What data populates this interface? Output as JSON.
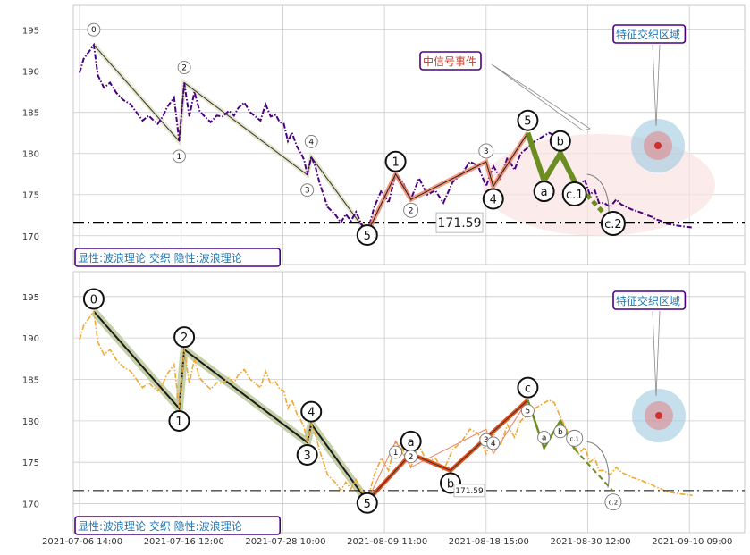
{
  "chart_data": [
    {
      "type": "line",
      "panel": "top",
      "x_ticks": [
        "2021-07-06 14:00",
        "2021-07-16 12:00",
        "2021-07-28 10:00",
        "2021-08-09 11:00",
        "2021-08-18 15:00",
        "2021-08-30 12:00",
        "2021-09-10 09:00"
      ],
      "y_ticks": [
        170,
        175,
        180,
        185,
        190,
        195
      ],
      "ylim": [
        166.5,
        198
      ],
      "grid": true,
      "series": [
        {
          "style": "dash-dot",
          "color": "#4b0082",
          "x": [
            0.0,
            0.4,
            1.0,
            1.4,
            1.8,
            2.4,
            3.0,
            3.6,
            4.3,
            5.0,
            5.6,
            6.2,
            6.8,
            7.3,
            7.7,
            8.2,
            8.6,
            9.3,
            9.8,
            10.3,
            10.8,
            11.3,
            11.8,
            12.3,
            12.9,
            13.5,
            14.1,
            14.7,
            15.2,
            15.6,
            16.2,
            16.8,
            17.3,
            17.8,
            18.3,
            18.8,
            19.3,
            19.7,
            20.1,
            20.5,
            20.9,
            21.4,
            21.8,
            22.1,
            22.4,
            22.8,
            23.2,
            23.6,
            24.0,
            24.4,
            24.8,
            25.2,
            25.7,
            26.2,
            26.7,
            27.2,
            27.7,
            28.3,
            29.0,
            29.7,
            30.4,
            31.1,
            31.8,
            32.6,
            33.4,
            34.2,
            35.0,
            35.8,
            36.7,
            37.6,
            38.4,
            39.2,
            40.0,
            40.7,
            41.4,
            42.1,
            42.8,
            43.4,
            44.1,
            44.8,
            45.5,
            46.2,
            46.7,
            47.3,
            47.9,
            48.5,
            49.1,
            49.7,
            50.2,
            50.7,
            51.1,
            51.6,
            52.2,
            52.8,
            53.3,
            53.8,
            54.3,
            54.8,
            55.3,
            55.8,
            56.3,
            56.7,
            57.2,
            57.6,
            58.0,
            58.5,
            59.0,
            59.6,
            60.3
          ],
          "values": [
            189.8,
            191.5,
            192.5,
            193.2,
            189.5,
            188.0,
            188.6,
            187.4,
            186.5,
            186.0,
            185.0,
            184.0,
            184.6,
            184.0,
            183.6,
            184.5,
            185.6,
            186.8,
            181.5,
            188.6,
            184.5,
            187.5,
            185.2,
            184.5,
            183.8,
            184.6,
            184.5,
            185.2,
            184.6,
            185.5,
            186.2,
            185.0,
            184.5,
            184.0,
            186.0,
            184.5,
            184.7,
            183.8,
            183.6,
            181.5,
            182.5,
            180.8,
            180.0,
            179.2,
            177.4,
            179.6,
            178.4,
            176.5,
            175.0,
            173.5,
            173.0,
            172.5,
            171.6,
            172.6,
            171.8,
            172.9,
            171.5,
            170.3,
            173.5,
            175.5,
            174.0,
            177.5,
            176.5,
            174.4,
            177.0,
            175.0,
            175.5,
            174.0,
            176.5,
            177.5,
            179.0,
            178.5,
            176.0,
            178.5,
            177.0,
            179.5,
            178.0,
            180.0,
            180.7,
            181.5,
            182.0,
            182.5,
            182.2,
            180.5,
            179.0,
            177.5,
            176.0,
            176.8,
            175.0,
            175.5,
            174.0,
            174.0,
            173.5,
            174.4,
            173.8,
            173.5,
            173.2,
            173.0,
            172.8,
            172.5,
            172.3,
            172.0,
            171.8,
            171.5,
            171.4,
            171.3,
            171.2,
            171.1,
            171.0
          ]
        }
      ],
      "reference_line": {
        "value": 171.59,
        "label": "171.59",
        "style": "dash-dot"
      },
      "waves": [
        {
          "label": "0",
          "x": 1.4,
          "y": 193.2
        },
        {
          "label": "1",
          "x": 9.8,
          "y": 181.5
        },
        {
          "label": "2",
          "x": 10.3,
          "y": 188.6
        },
        {
          "label": "3",
          "x": 22.4,
          "y": 177.4
        },
        {
          "label": "4",
          "x": 22.8,
          "y": 179.6
        },
        {
          "label": "5",
          "x": 28.3,
          "y": 170.3
        },
        {
          "label": "1",
          "x": 31.1,
          "y": 177.5
        },
        {
          "label": "2",
          "x": 32.6,
          "y": 174.4
        },
        {
          "label": "3",
          "x": 40.0,
          "y": 179.0
        },
        {
          "label": "4",
          "x": 40.7,
          "y": 176.0
        },
        {
          "label": "5",
          "x": 44.1,
          "y": 182.5
        },
        {
          "label": "a",
          "x": 45.7,
          "y": 176.7
        },
        {
          "label": "b",
          "x": 47.3,
          "y": 180.0
        },
        {
          "label": "c.1",
          "x": 48.7,
          "y": 176.6
        },
        {
          "label": "c.2",
          "x": 52.5,
          "y": 171.5
        }
      ],
      "annotations": [
        "中信号事件",
        "特征交织区域",
        "显性:波浪理论 交织 隐性:波浪理论"
      ]
    },
    {
      "type": "line",
      "panel": "bottom",
      "x_ticks": [
        "2021-07-06 14:00",
        "2021-07-16 12:00",
        "2021-07-28 10:00",
        "2021-08-09 11:00",
        "2021-08-18 15:00",
        "2021-08-30 12:00",
        "2021-09-10 09:00"
      ],
      "y_ticks": [
        170,
        175,
        180,
        185,
        190,
        195
      ],
      "ylim": [
        166.5,
        198
      ],
      "grid": true,
      "series": [
        {
          "style": "dash-dot",
          "color": "#f0a830",
          "x": [
            0.0,
            0.4,
            1.0,
            1.4,
            1.8,
            2.4,
            3.0,
            3.6,
            4.3,
            5.0,
            5.6,
            6.2,
            6.8,
            7.3,
            7.7,
            8.2,
            8.6,
            9.3,
            9.8,
            10.3,
            10.8,
            11.3,
            11.8,
            12.3,
            12.9,
            13.5,
            14.1,
            14.7,
            15.2,
            15.6,
            16.2,
            16.8,
            17.3,
            17.8,
            18.3,
            18.8,
            19.3,
            19.7,
            20.1,
            20.5,
            20.9,
            21.4,
            21.8,
            22.1,
            22.4,
            22.8,
            23.2,
            23.6,
            24.0,
            24.4,
            24.8,
            25.2,
            25.7,
            26.2,
            26.7,
            27.2,
            27.7,
            28.3,
            29.0,
            29.7,
            30.4,
            31.1,
            31.8,
            32.6,
            33.4,
            34.2,
            35.0,
            35.8,
            36.7,
            37.6,
            38.4,
            39.2,
            40.0,
            40.7,
            41.4,
            42.1,
            42.8,
            43.4,
            44.1,
            44.8,
            45.5,
            46.2,
            46.7,
            47.3,
            47.9,
            48.5,
            49.1,
            49.7,
            50.2,
            50.7,
            51.1,
            51.6,
            52.2,
            52.8,
            53.3,
            53.8,
            54.3,
            54.8,
            55.3,
            55.8,
            56.3,
            56.7,
            57.2,
            57.6,
            58.0,
            58.5,
            59.0,
            59.6,
            60.3
          ],
          "values": [
            189.8,
            191.5,
            192.5,
            193.2,
            189.5,
            188.0,
            188.6,
            187.4,
            186.5,
            186.0,
            185.0,
            184.0,
            184.6,
            184.0,
            183.6,
            184.5,
            185.6,
            186.8,
            181.5,
            188.6,
            184.5,
            187.5,
            185.2,
            184.5,
            183.8,
            184.6,
            184.5,
            185.2,
            184.6,
            185.5,
            186.2,
            185.0,
            184.5,
            184.0,
            186.0,
            184.5,
            184.7,
            183.8,
            183.6,
            181.5,
            182.5,
            180.8,
            180.0,
            179.2,
            177.4,
            179.6,
            178.4,
            176.5,
            175.0,
            173.5,
            173.0,
            172.5,
            171.6,
            172.6,
            171.8,
            172.9,
            171.5,
            170.3,
            173.5,
            175.5,
            174.0,
            177.5,
            176.5,
            174.4,
            177.0,
            175.0,
            175.5,
            174.0,
            176.5,
            177.5,
            179.0,
            178.5,
            176.0,
            178.5,
            177.0,
            179.5,
            178.0,
            180.0,
            180.7,
            181.5,
            182.0,
            182.5,
            182.2,
            180.5,
            179.0,
            177.5,
            176.0,
            176.8,
            175.0,
            175.5,
            174.0,
            174.0,
            173.5,
            174.4,
            173.8,
            173.5,
            173.2,
            173.0,
            172.8,
            172.5,
            172.3,
            172.0,
            171.8,
            171.5,
            171.4,
            171.3,
            171.2,
            171.1,
            171.0
          ]
        }
      ],
      "reference_line": {
        "value": 171.59,
        "label": "171.59",
        "style": "dash-dot"
      },
      "waves": [
        {
          "label": "0",
          "x": 1.4,
          "y": 193.2
        },
        {
          "label": "1",
          "x": 9.8,
          "y": 181.5
        },
        {
          "label": "2",
          "x": 10.3,
          "y": 188.6
        },
        {
          "label": "3",
          "x": 22.4,
          "y": 177.4
        },
        {
          "label": "4",
          "x": 22.8,
          "y": 179.6
        },
        {
          "label": "5",
          "x": 28.3,
          "y": 170.3
        },
        {
          "label": "a",
          "x": 32.6,
          "y": 176.0
        },
        {
          "label": "b",
          "x": 36.5,
          "y": 174.0
        },
        {
          "label": "c",
          "x": 44.1,
          "y": 182.5
        },
        {
          "label": "1",
          "x": 31.1,
          "y": 177.5
        },
        {
          "label": "2",
          "x": 32.6,
          "y": 174.4
        },
        {
          "label": "3",
          "x": 40.0,
          "y": 179.0
        },
        {
          "label": "4",
          "x": 40.7,
          "y": 176.0
        },
        {
          "label": "5",
          "x": 44.1,
          "y": 182.5
        },
        {
          "label": "a",
          "x": 45.7,
          "y": 176.7
        },
        {
          "label": "b",
          "x": 47.3,
          "y": 180.0
        },
        {
          "label": "c.1",
          "x": 48.7,
          "y": 176.6
        },
        {
          "label": "c.2",
          "x": 52.5,
          "y": 171.5
        }
      ],
      "annotations": [
        "特征交织区域",
        "显性:波浪理论 交织 隐性:波浪理论"
      ]
    }
  ],
  "colors": {
    "top_series": "#4b0082",
    "bottom_series": "#f0a830",
    "impulse_band": "#c5d0a8",
    "up_wave": "#f08060",
    "down_wave": "#6b8e23",
    "strong_wave": "#e8501a",
    "halo_blue": "#9ecae1",
    "halo_red": "#e67a7a",
    "zone_pink": "#fbe3e3",
    "label_border": "#4b0082",
    "label_text": "#1f77b4"
  }
}
